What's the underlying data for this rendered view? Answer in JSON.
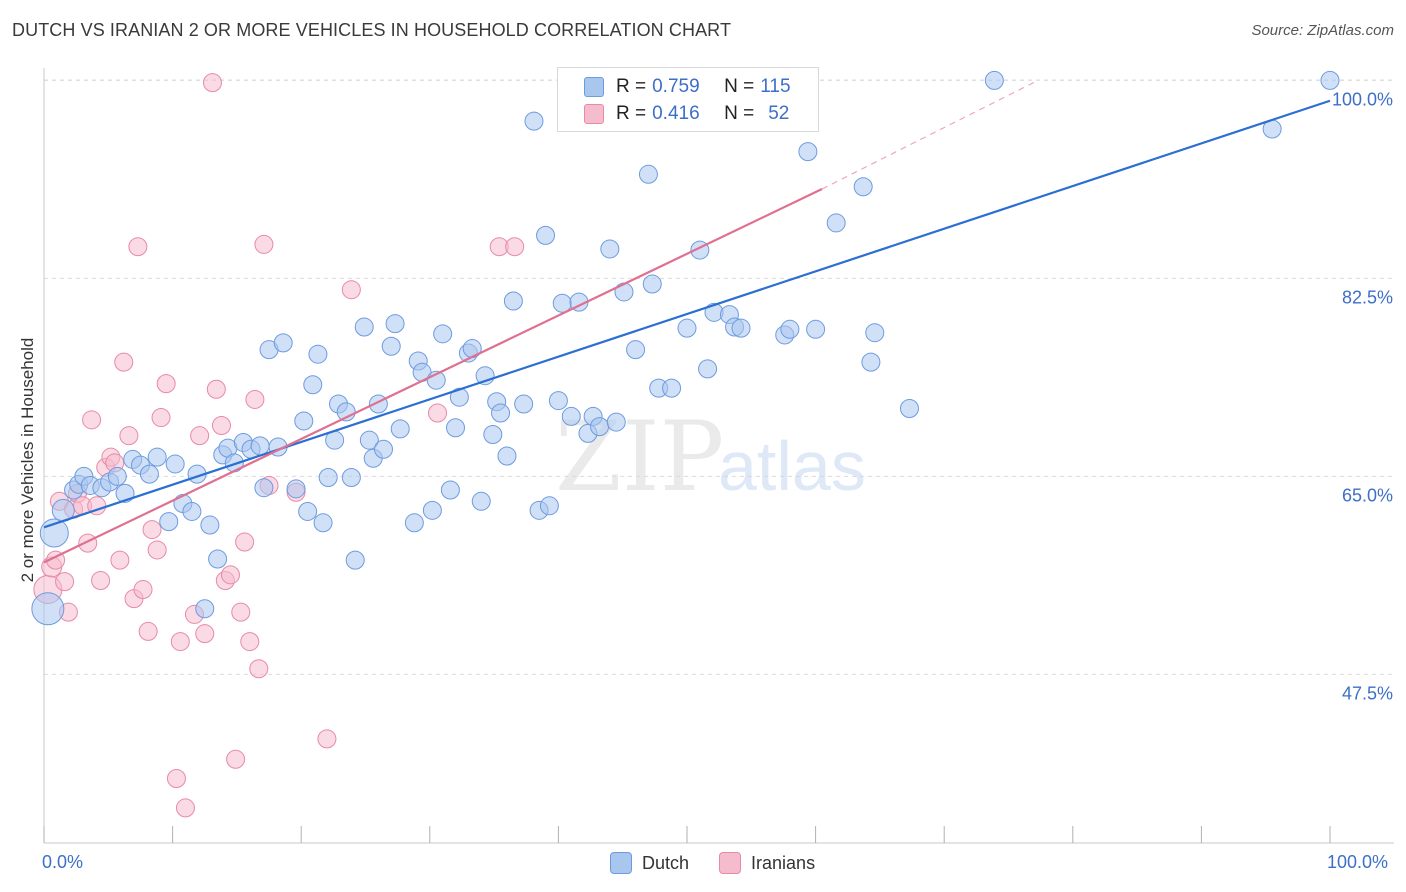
{
  "title": "DUTCH VS IRANIAN 2 OR MORE VEHICLES IN HOUSEHOLD CORRELATION CHART",
  "source": "Source: ZipAtlas.com",
  "watermark": {
    "zip": "ZIP",
    "atlas": "atlas"
  },
  "legend_top": {
    "dutch": {
      "r_label": "R = ",
      "r_value": "0.759",
      "n_label": "N = ",
      "n_value": "115"
    },
    "iranians": {
      "r_label": "R = ",
      "r_value": "0.416",
      "n_label": "N = ",
      "n_value": "52"
    }
  },
  "legend_bottom": {
    "dutch": "Dutch",
    "iranians": "Iranians"
  },
  "x_axis": {
    "left_label": "0.0%",
    "right_label": "100.0%"
  },
  "colors": {
    "dutch_fill": "#a9c7ee",
    "dutch_stroke": "#6e9be0",
    "dutch_line": "#2a6fd1",
    "iran_fill": "#f5bccd",
    "iran_stroke": "#e88aa6",
    "iran_line": "#e0708f",
    "tick_label": "#3d6fc8",
    "grid": "#dcdcdc"
  },
  "chart_data": {
    "type": "scatter",
    "title": "DUTCH VS IRANIAN 2 OR MORE VEHICLES IN HOUSEHOLD CORRELATION CHART",
    "xlabel": "",
    "ylabel": "2 or more Vehicles in Household",
    "xlim": [
      0,
      100
    ],
    "ylim": [
      32.6,
      101.8
    ],
    "y_ticks": [
      47.5,
      65.0,
      82.5,
      100.0
    ],
    "y_tick_labels": [
      "47.5%",
      "65.0%",
      "82.5%",
      "100.0%"
    ],
    "grid": "horizontal dashed",
    "legend": "top-center",
    "series": [
      {
        "name": "Dutch",
        "R": 0.759,
        "N": 115,
        "trend": {
          "x": [
            0,
            100
          ],
          "y": [
            60.5,
            98.2
          ],
          "dashed_from": null
        },
        "points": [
          [
            0.3,
            53.3,
            16
          ],
          [
            0.8,
            60.0,
            14
          ],
          [
            1.5,
            62.0,
            11
          ],
          [
            2.3,
            63.8,
            9
          ],
          [
            2.7,
            64.3,
            9
          ],
          [
            3.1,
            65.0,
            9
          ],
          [
            3.6,
            64.2,
            9
          ],
          [
            4.5,
            64.0,
            9
          ],
          [
            5.1,
            64.5,
            9
          ],
          [
            5.7,
            65.0,
            9
          ],
          [
            6.3,
            63.5,
            9
          ],
          [
            6.9,
            66.5,
            9
          ],
          [
            7.5,
            66.0,
            9
          ],
          [
            8.2,
            65.2,
            9
          ],
          [
            8.8,
            66.7,
            9
          ],
          [
            9.7,
            61.0,
            9
          ],
          [
            10.2,
            66.1,
            9
          ],
          [
            10.8,
            62.6,
            9
          ],
          [
            11.5,
            61.9,
            9
          ],
          [
            11.9,
            65.2,
            9
          ],
          [
            12.5,
            53.3,
            9
          ],
          [
            12.9,
            60.7,
            9
          ],
          [
            13.5,
            57.7,
            9
          ],
          [
            13.9,
            66.9,
            9
          ],
          [
            14.3,
            67.5,
            9
          ],
          [
            14.8,
            66.2,
            9
          ],
          [
            15.5,
            68.0,
            9
          ],
          [
            16.1,
            67.4,
            9
          ],
          [
            16.8,
            67.7,
            9
          ],
          [
            17.1,
            64.0,
            9
          ],
          [
            17.5,
            76.2,
            9
          ],
          [
            18.2,
            67.6,
            9
          ],
          [
            18.6,
            76.8,
            9
          ],
          [
            19.6,
            63.9,
            9
          ],
          [
            20.2,
            69.9,
            9
          ],
          [
            20.5,
            61.9,
            9
          ],
          [
            20.9,
            73.1,
            9
          ],
          [
            21.3,
            75.8,
            9
          ],
          [
            21.7,
            60.9,
            9
          ],
          [
            22.1,
            64.9,
            9
          ],
          [
            22.6,
            68.2,
            9
          ],
          [
            22.9,
            71.4,
            9
          ],
          [
            23.5,
            70.7,
            9
          ],
          [
            23.9,
            64.9,
            9
          ],
          [
            24.2,
            57.6,
            9
          ],
          [
            24.9,
            78.2,
            9
          ],
          [
            25.3,
            68.2,
            9
          ],
          [
            25.6,
            66.6,
            9
          ],
          [
            26.0,
            71.4,
            9
          ],
          [
            26.4,
            67.4,
            9
          ],
          [
            27.0,
            76.5,
            9
          ],
          [
            27.3,
            78.5,
            9
          ],
          [
            27.7,
            69.2,
            9
          ],
          [
            28.8,
            60.9,
            9
          ],
          [
            29.1,
            75.2,
            9
          ],
          [
            29.4,
            74.2,
            9
          ],
          [
            30.2,
            62.0,
            9
          ],
          [
            30.5,
            73.5,
            9
          ],
          [
            31.0,
            77.6,
            9
          ],
          [
            31.6,
            63.8,
            9
          ],
          [
            32.0,
            69.3,
            9
          ],
          [
            32.3,
            72.0,
            9
          ],
          [
            33.0,
            75.9,
            9
          ],
          [
            33.3,
            76.3,
            9
          ],
          [
            34.0,
            62.8,
            9
          ],
          [
            34.3,
            73.9,
            9
          ],
          [
            34.9,
            68.7,
            9
          ],
          [
            35.2,
            71.6,
            9
          ],
          [
            35.5,
            70.6,
            9
          ],
          [
            36.0,
            66.8,
            9
          ],
          [
            36.5,
            80.5,
            9
          ],
          [
            37.3,
            71.4,
            9
          ],
          [
            38.1,
            96.4,
            9
          ],
          [
            38.5,
            62.0,
            9
          ],
          [
            39.0,
            86.3,
            9
          ],
          [
            39.3,
            62.4,
            9
          ],
          [
            40.0,
            71.7,
            9
          ],
          [
            40.3,
            80.3,
            9
          ],
          [
            41.0,
            70.3,
            9
          ],
          [
            41.6,
            80.4,
            9
          ],
          [
            42.3,
            68.8,
            9
          ],
          [
            42.7,
            70.3,
            9
          ],
          [
            43.2,
            69.4,
            9
          ],
          [
            44.0,
            85.1,
            9
          ],
          [
            44.5,
            69.8,
            9
          ],
          [
            45.1,
            81.3,
            9
          ],
          [
            46.0,
            76.2,
            9
          ],
          [
            47.0,
            91.7,
            9
          ],
          [
            47.3,
            82.0,
            9
          ],
          [
            47.8,
            72.8,
            9
          ],
          [
            48.8,
            72.8,
            9
          ],
          [
            50.0,
            78.1,
            9
          ],
          [
            51.0,
            85.0,
            9
          ],
          [
            51.6,
            74.5,
            9
          ],
          [
            52.1,
            79.5,
            9
          ],
          [
            53.3,
            79.3,
            9
          ],
          [
            53.7,
            78.2,
            9
          ],
          [
            54.2,
            78.1,
            9
          ],
          [
            55.3,
            100.0,
            9
          ],
          [
            57.6,
            77.5,
            9
          ],
          [
            58.0,
            78.0,
            9
          ],
          [
            59.4,
            93.7,
            9
          ],
          [
            60.0,
            78.0,
            9
          ],
          [
            61.6,
            87.4,
            9
          ],
          [
            63.7,
            90.6,
            9
          ],
          [
            64.3,
            75.1,
            9
          ],
          [
            64.6,
            77.7,
            9
          ],
          [
            67.3,
            71.0,
            9
          ],
          [
            73.9,
            100.0,
            9
          ],
          [
            95.5,
            95.7,
            9
          ],
          [
            100.0,
            100.0,
            9
          ]
        ]
      },
      {
        "name": "Iranians",
        "R": 0.416,
        "N": 52,
        "trend": {
          "x": [
            0,
            60.5
          ],
          "y": [
            57.4,
            90.4
          ],
          "dashed_to": [
            77.3,
            100.0
          ]
        },
        "points": [
          [
            0.3,
            55.0,
            14
          ],
          [
            0.6,
            57.0,
            10
          ],
          [
            0.9,
            57.6,
            9
          ],
          [
            1.2,
            62.8,
            9
          ],
          [
            1.6,
            55.7,
            9
          ],
          [
            1.9,
            53.0,
            9
          ],
          [
            2.3,
            62.1,
            9
          ],
          [
            2.6,
            63.5,
            9
          ],
          [
            3.0,
            62.4,
            9
          ],
          [
            3.4,
            59.1,
            9
          ],
          [
            3.7,
            70.0,
            9
          ],
          [
            4.1,
            62.4,
            9
          ],
          [
            4.4,
            55.8,
            9
          ],
          [
            4.8,
            65.8,
            9
          ],
          [
            5.2,
            66.7,
            9
          ],
          [
            5.5,
            66.2,
            9
          ],
          [
            5.9,
            57.6,
            9
          ],
          [
            6.2,
            75.1,
            9
          ],
          [
            6.6,
            68.6,
            9
          ],
          [
            7.0,
            54.2,
            9
          ],
          [
            7.3,
            85.3,
            9
          ],
          [
            7.7,
            55.0,
            9
          ],
          [
            8.1,
            51.3,
            9
          ],
          [
            8.4,
            60.3,
            9
          ],
          [
            8.8,
            58.5,
            9
          ],
          [
            9.1,
            70.2,
            9
          ],
          [
            9.5,
            73.2,
            9
          ],
          [
            10.3,
            38.3,
            9
          ],
          [
            10.6,
            50.4,
            9
          ],
          [
            11.0,
            35.7,
            9
          ],
          [
            11.7,
            52.8,
            9
          ],
          [
            12.1,
            68.6,
            9
          ],
          [
            12.5,
            51.1,
            9
          ],
          [
            13.1,
            99.8,
            9
          ],
          [
            13.4,
            72.7,
            9
          ],
          [
            13.8,
            69.5,
            9
          ],
          [
            14.1,
            55.8,
            9
          ],
          [
            14.5,
            56.3,
            9
          ],
          [
            14.9,
            40.0,
            9
          ],
          [
            15.3,
            53.0,
            9
          ],
          [
            15.6,
            59.2,
            9
          ],
          [
            16.0,
            50.4,
            9
          ],
          [
            16.4,
            71.8,
            9
          ],
          [
            16.7,
            48.0,
            9
          ],
          [
            17.1,
            85.5,
            9
          ],
          [
            17.5,
            64.2,
            9
          ],
          [
            19.6,
            63.6,
            9
          ],
          [
            22.0,
            41.8,
            9
          ],
          [
            23.9,
            81.5,
            9
          ],
          [
            30.6,
            70.6,
            9
          ],
          [
            35.4,
            85.3,
            9
          ],
          [
            36.6,
            85.3,
            9
          ]
        ]
      }
    ]
  }
}
